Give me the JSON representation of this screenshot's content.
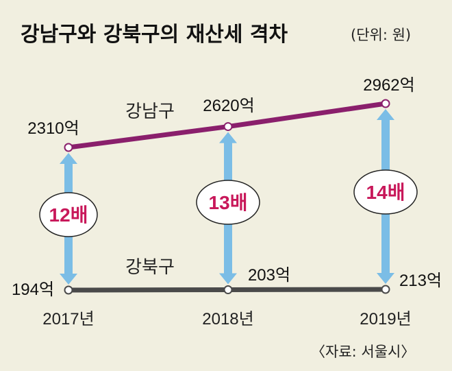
{
  "chart_data": {
    "type": "line",
    "title": "강남구와 강북구의 재산세 격차",
    "unit": "(단위: 원)",
    "source": "〈자료: 서울시〉",
    "categories": [
      "2017년",
      "2018년",
      "2019년"
    ],
    "series": [
      {
        "name": "강남구",
        "values": [
          2310,
          2620,
          2962
        ],
        "labels": [
          "2310억",
          "2620억",
          "2962억"
        ],
        "color": "#8a1f6c"
      },
      {
        "name": "강북구",
        "values": [
          194,
          203,
          213
        ],
        "labels": [
          "194억",
          "203억",
          "213억"
        ],
        "color": "#4a4a4a"
      }
    ],
    "ratios": [
      "12배",
      "13배",
      "14배"
    ],
    "arrow_color": "#7bbde6",
    "ratio_color": "#c8185a",
    "grid": false,
    "legend": "none"
  }
}
